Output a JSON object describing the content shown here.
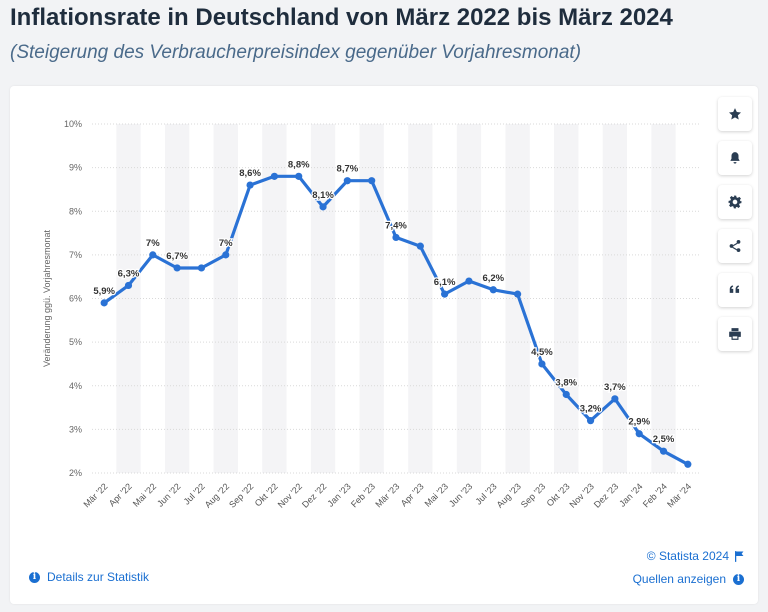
{
  "header": {
    "title": "Inflationsrate in Deutschland von März 2022 bis März 2024",
    "subtitle": "(Steigerung des Verbraucherpreisindex gegenüber Vorjahresmonat)"
  },
  "toolbar": {
    "items": [
      {
        "name": "star-button",
        "icon": "star-icon"
      },
      {
        "name": "notification-button",
        "icon": "bell-icon"
      },
      {
        "name": "settings-button",
        "icon": "gear-icon"
      },
      {
        "name": "share-button",
        "icon": "share-icon"
      },
      {
        "name": "cite-button",
        "icon": "quote-icon"
      },
      {
        "name": "print-button",
        "icon": "printer-icon"
      }
    ]
  },
  "footer": {
    "details_label": "Details zur Statistik",
    "copyright": "© Statista 2024",
    "sources_label": "Quellen anzeigen",
    "info_glyph": "i"
  },
  "colors": {
    "line": "#2a72d5",
    "accent": "#1a6fd1"
  },
  "chart_data": {
    "type": "line",
    "ylabel": "Veränderung ggü. Vorjahresmonat",
    "xlabel": "",
    "ylim": [
      2,
      10
    ],
    "yticks": [
      2,
      3,
      4,
      5,
      6,
      7,
      8,
      9,
      10
    ],
    "ytick_labels": [
      "2%",
      "3%",
      "4%",
      "5%",
      "6%",
      "7%",
      "8%",
      "9%",
      "10%"
    ],
    "categories": [
      "Mär '22",
      "Apr '22",
      "Mai '22",
      "Jun '22",
      "Jul '22",
      "Aug '22",
      "Sep '22",
      "Okt '22",
      "Nov '22",
      "Dez '22",
      "Jan '23",
      "Feb '23",
      "Mär '23",
      "Apr '23",
      "Mai '23",
      "Jun '23",
      "Jul '23",
      "Aug '23",
      "Sep '23",
      "Okt '23",
      "Nov '23",
      "Dez '23",
      "Jan '24",
      "Feb '24",
      "Mär '24"
    ],
    "values": [
      5.9,
      6.3,
      7.0,
      6.7,
      6.7,
      7.0,
      8.6,
      8.8,
      8.8,
      8.1,
      8.7,
      8.7,
      7.4,
      7.2,
      6.1,
      6.4,
      6.2,
      6.1,
      4.5,
      3.8,
      3.2,
      3.7,
      2.9,
      2.5,
      2.2
    ],
    "data_labels": [
      {
        "index": 0,
        "text": "5,9%"
      },
      {
        "index": 1,
        "text": "6,3%"
      },
      {
        "index": 2,
        "text": "7%"
      },
      {
        "index": 3,
        "text": "6,7%"
      },
      {
        "index": 5,
        "text": "7%"
      },
      {
        "index": 6,
        "text": "8,6%"
      },
      {
        "index": 8,
        "text": "8,8%"
      },
      {
        "index": 9,
        "text": "8,1%"
      },
      {
        "index": 10,
        "text": "8,7%"
      },
      {
        "index": 12,
        "text": "7,4%"
      },
      {
        "index": 14,
        "text": "6,1%"
      },
      {
        "index": 16,
        "text": "6,2%"
      },
      {
        "index": 18,
        "text": "4,5%"
      },
      {
        "index": 19,
        "text": "3,8%"
      },
      {
        "index": 20,
        "text": "3,2%"
      },
      {
        "index": 21,
        "text": "3,7%"
      },
      {
        "index": 22,
        "text": "2,9%"
      },
      {
        "index": 23,
        "text": "2,5%"
      }
    ],
    "grid": true
  }
}
